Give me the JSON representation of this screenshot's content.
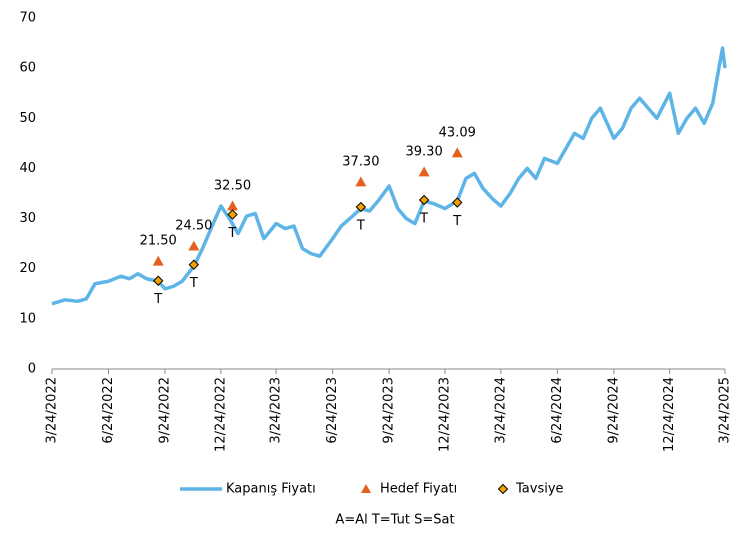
{
  "chart_data": {
    "type": "line",
    "xlim": [
      "3/24/2022",
      "3/24/2025"
    ],
    "xticks": [
      "3/24/2022",
      "6/24/2022",
      "9/24/2022",
      "12/24/2022",
      "3/24/2023",
      "6/24/2023",
      "9/24/2023",
      "12/24/2023",
      "3/24/2024",
      "6/24/2024",
      "9/24/2024",
      "12/24/2024",
      "3/24/2025"
    ],
    "ylim": [
      0,
      70
    ],
    "yticks": [
      0,
      10,
      20,
      30,
      40,
      50,
      60,
      70
    ],
    "legend": "bottom",
    "note": "A=Al   T=Tut   S=Sat",
    "series": [
      {
        "name": "Kapanış Fiyatı",
        "color": "#5db4e6",
        "marker": "line",
        "x": [
          "3/24/2022",
          "4/14/2022",
          "5/5/2022",
          "5/19/2022",
          "6/2/2022",
          "6/24/2022",
          "7/14/2022",
          "7/28/2022",
          "8/11/2022",
          "8/25/2022",
          "9/13/2022",
          "9/24/2022",
          "10/8/2022",
          "10/22/2022",
          "11/10/2022",
          "11/24/2022",
          "12/8/2022",
          "12/24/2022",
          "1/7/2023",
          "1/21/2023",
          "2/4/2023",
          "2/18/2023",
          "3/4/2023",
          "3/24/2023",
          "4/8/2023",
          "4/22/2023",
          "5/6/2023",
          "5/20/2023",
          "6/3/2023",
          "6/24/2023",
          "7/8/2023",
          "7/22/2023",
          "8/9/2023",
          "8/23/2023",
          "9/6/2023",
          "9/24/2023",
          "10/8/2023",
          "10/22/2023",
          "11/5/2023",
          "11/20/2023",
          "12/5/2023",
          "12/24/2023",
          "1/13/2024",
          "1/27/2024",
          "2/10/2024",
          "2/24/2024",
          "3/10/2024",
          "3/24/2024",
          "4/8/2024",
          "4/22/2024",
          "5/6/2024",
          "5/20/2024",
          "6/3/2024",
          "6/24/2024",
          "7/8/2024",
          "7/22/2024",
          "8/5/2024",
          "8/19/2024",
          "9/2/2024",
          "9/24/2024",
          "10/8/2024",
          "10/22/2024",
          "11/5/2024",
          "11/19/2024",
          "12/3/2024",
          "12/24/2024",
          "1/7/2025",
          "1/21/2025",
          "2/4/2025",
          "2/18/2025",
          "3/4/2025",
          "3/14/2025",
          "3/20/2025",
          "3/24/2025"
        ],
        "values": [
          13,
          13.8,
          13.5,
          14,
          17,
          17.5,
          18.5,
          18,
          19,
          18,
          17.5,
          16,
          16.5,
          17.5,
          20.5,
          24,
          28,
          32.5,
          30,
          27,
          30.5,
          31,
          26,
          29,
          28,
          28.5,
          24,
          23,
          22.5,
          26,
          28.5,
          30,
          32,
          31.5,
          33.5,
          36.5,
          32,
          30,
          29,
          33.5,
          33,
          32,
          33.5,
          38,
          39,
          36,
          34,
          32.5,
          35,
          38,
          40,
          38,
          42,
          41,
          44,
          47,
          46,
          50,
          52,
          46,
          48,
          52,
          54,
          52,
          50,
          55,
          47,
          50,
          52,
          49,
          53,
          60,
          64,
          60
        ]
      },
      {
        "name": "Hedef Fiyatı",
        "color": "#e4601f",
        "marker": "triangle",
        "x": [
          "9/13/2022",
          "11/10/2022",
          "1/12/2023",
          "8/9/2023",
          "11/20/2023",
          "1/13/2024"
        ],
        "values": [
          21.5,
          24.5,
          32.5,
          37.3,
          39.3,
          43.09
        ],
        "value_labels": [
          "21.50",
          "24.50",
          "32.50",
          "37.30",
          "39.30",
          "43.09"
        ]
      },
      {
        "name": "Tavsiye",
        "color": "#f4a000",
        "marker": "diamond",
        "x": [
          "9/13/2022",
          "11/10/2022",
          "1/12/2023",
          "8/9/2023",
          "11/20/2023",
          "1/13/2024"
        ],
        "values": [
          17.6,
          20.8,
          30.8,
          32.3,
          33.7,
          33.2
        ],
        "labels": [
          "T",
          "T",
          "T",
          "T",
          "T",
          "T"
        ]
      }
    ]
  }
}
